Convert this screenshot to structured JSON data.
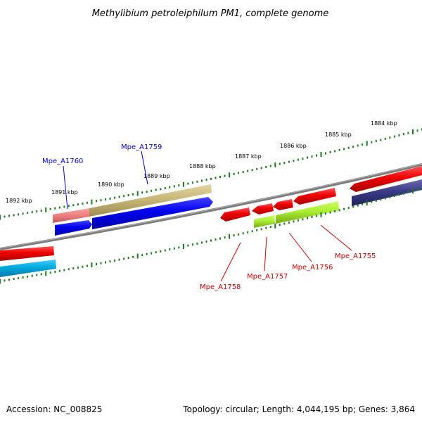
{
  "title": "Methylibium petroleiphilum PM1, complete genome",
  "footer": {
    "accession": "Accession: NC_008825",
    "summary": "Topology: circular; Length: 4,044,195 bp; Genes: 3,864"
  },
  "scale_labels": [
    "1892 kbp",
    "1891 kbp",
    "1890 kbp",
    "1889 kbp",
    "1888 kbp",
    "1887 kbp",
    "1886 kbp",
    "1885 kbp",
    "1884 kbp"
  ],
  "gene_labels": {
    "mpe_a1760": "Mpe_A1760",
    "mpe_a1759": "Mpe_A1759",
    "mpe_a1758": "Mpe_A1758",
    "mpe_a1757": "Mpe_A1757",
    "mpe_a1756": "Mpe_A1756",
    "mpe_a1755": "Mpe_A1755"
  },
  "colors": {
    "backbone": "#808080",
    "scale": "#1a7a1a",
    "forward_label": "#0000cc",
    "reverse_label": "#cc0000",
    "gene_red": "#ee0000",
    "gene_blue": "#0000ee",
    "gene_olive": "#c8b878",
    "gene_pink": "#f08080",
    "gene_lime": "#aaee33",
    "gene_cyan": "#00aadd",
    "gene_navy": "#3a3a88"
  }
}
